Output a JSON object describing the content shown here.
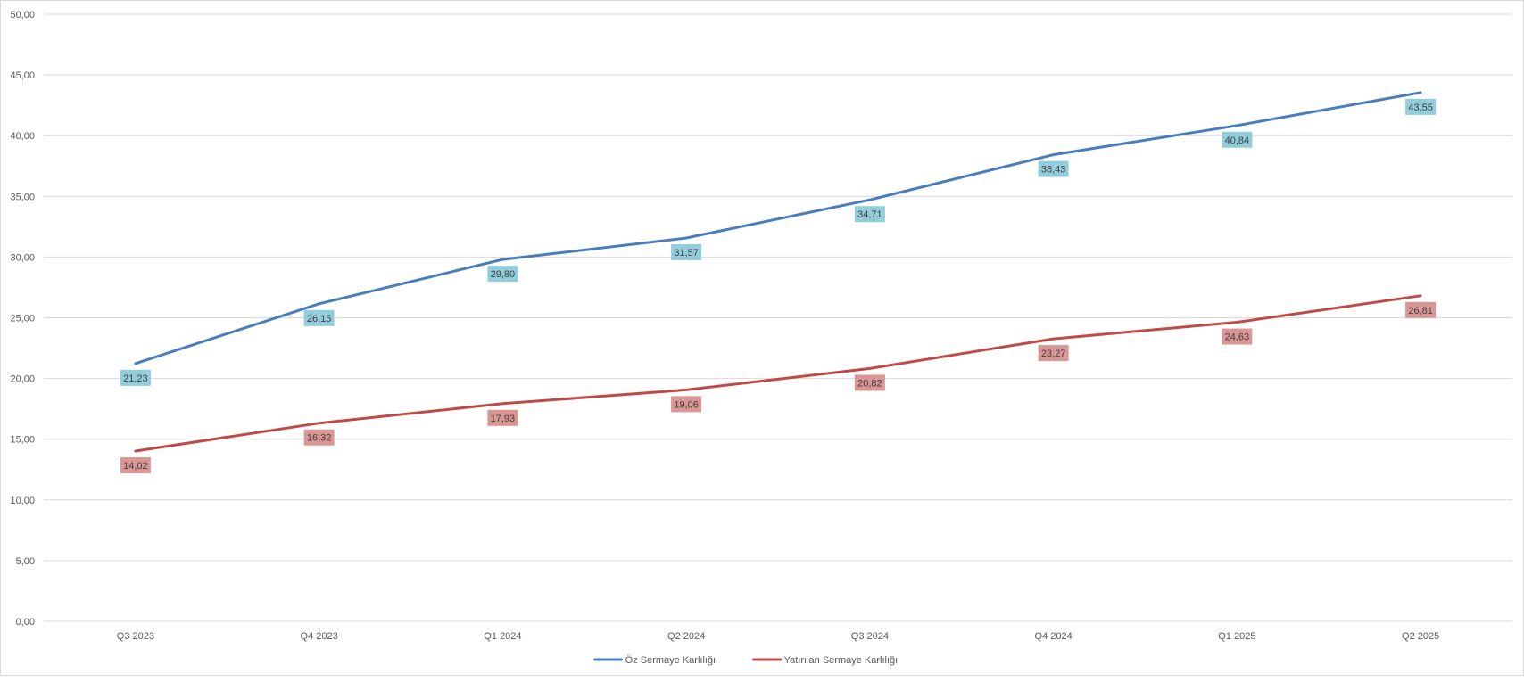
{
  "chart_data": {
    "type": "line",
    "categories": [
      "Q3 2023",
      "Q4 2023",
      "Q1 2024",
      "Q2 2024",
      "Q3 2024",
      "Q4 2024",
      "Q1 2025",
      "Q2 2025"
    ],
    "series": [
      {
        "name": "Öz Sermaye Karlılığı",
        "color": "#4a7ebb",
        "label_bg": "#92cddc",
        "values": [
          21.23,
          26.15,
          29.8,
          31.57,
          34.71,
          38.43,
          40.84,
          43.55
        ],
        "labels": [
          "21,23",
          "26,15",
          "29,80",
          "31,57",
          "34,71",
          "38,43",
          "40,84",
          "43,55"
        ]
      },
      {
        "name": "Yatırılan Sermaye Karlılığı",
        "color": "#be4b48",
        "label_bg": "#da9694",
        "values": [
          14.02,
          16.32,
          17.93,
          19.06,
          20.82,
          23.27,
          24.63,
          26.81
        ],
        "labels": [
          "14,02",
          "16,32",
          "17,93",
          "19,06",
          "20,82",
          "23,27",
          "24,63",
          "26,81"
        ]
      }
    ],
    "ylim": [
      0,
      50
    ],
    "y_ticks": [
      0,
      5,
      10,
      15,
      20,
      25,
      30,
      35,
      40,
      45,
      50
    ],
    "y_tick_labels": [
      "0,00",
      "5,00",
      "10,00",
      "15,00",
      "20,00",
      "25,00",
      "30,00",
      "35,00",
      "40,00",
      "45,00",
      "50,00"
    ],
    "grid": true,
    "legend_position": "bottom",
    "gridline_color": "#d9d9d9",
    "axis_text_color": "#595959"
  }
}
